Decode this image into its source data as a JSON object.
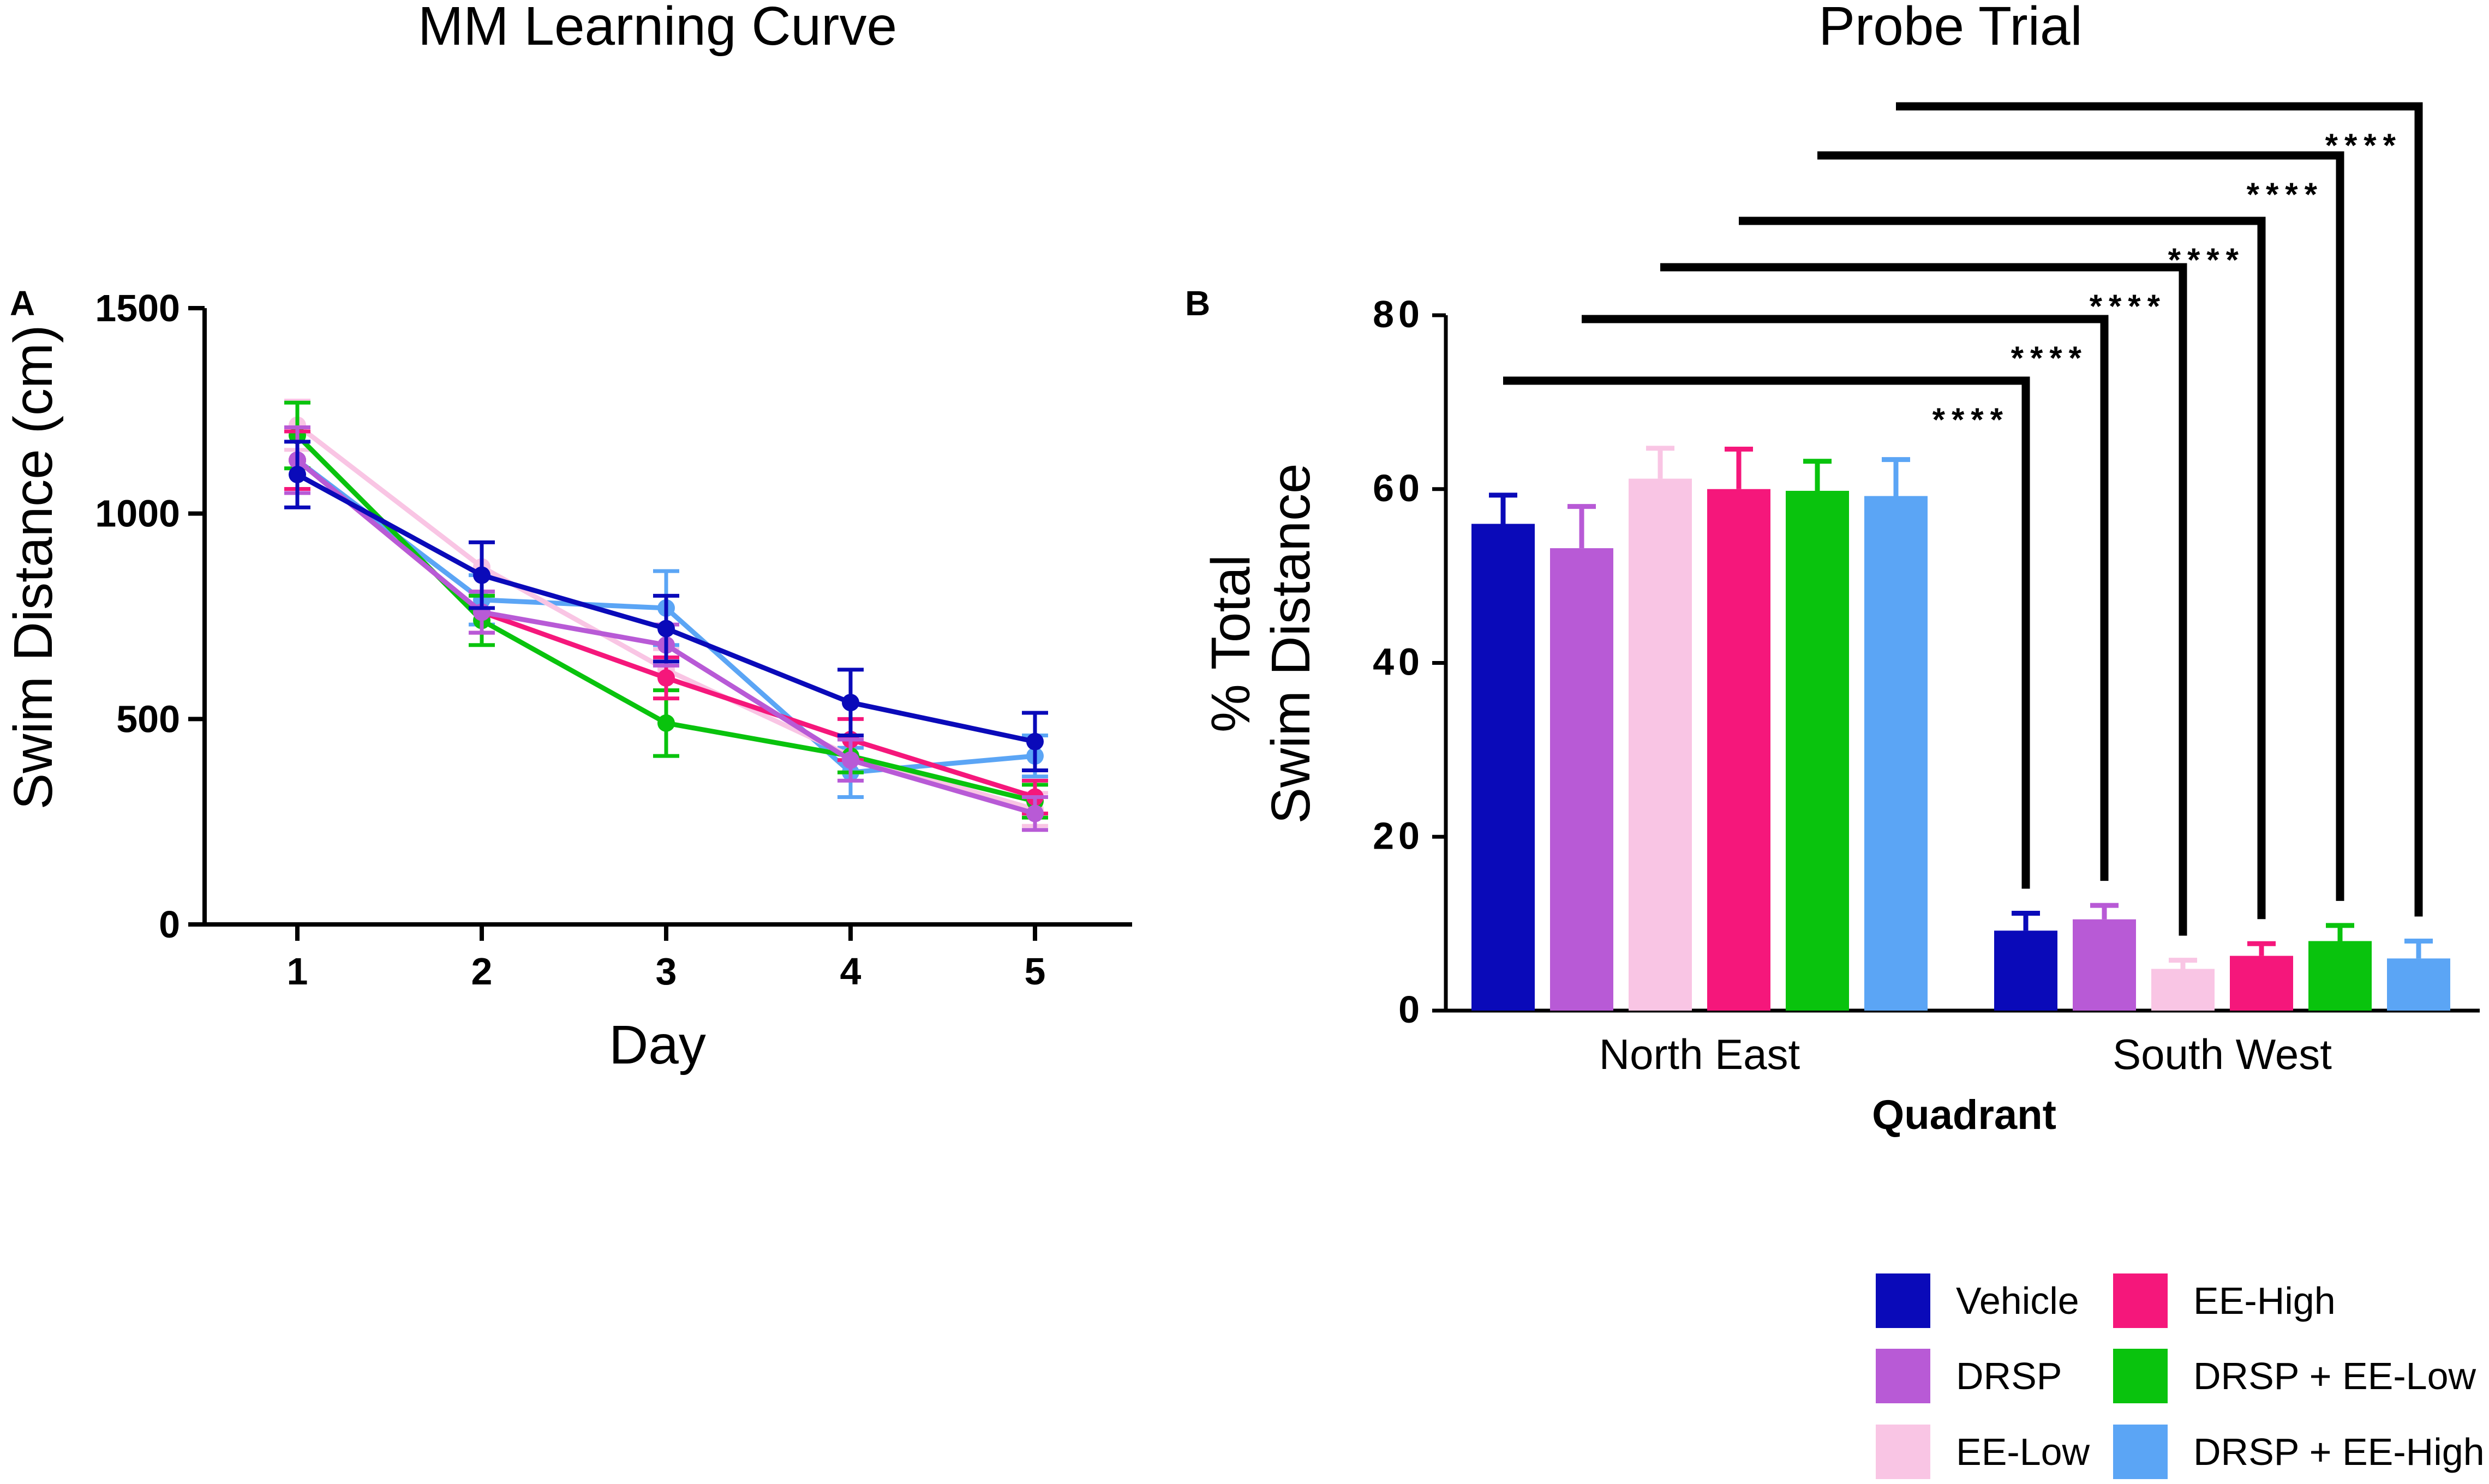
{
  "chart_data": [
    {
      "panel": "A",
      "type": "line",
      "title": "MM Learning Curve",
      "xlabel": "Day",
      "ylabel": "Swim Distance (cm)",
      "categories": [
        "1",
        "2",
        "3",
        "4",
        "5"
      ],
      "ylim": [
        0,
        1500
      ],
      "yticks": [
        "0",
        "500",
        "1000",
        "1500"
      ],
      "series": [
        {
          "name": "DRSP + EE-High",
          "color": "#5ba5f5",
          "values": [
            1130,
            790,
            770,
            370,
            410
          ],
          "errors": [
            70,
            60,
            90,
            60,
            50
          ]
        },
        {
          "name": "EE-Low",
          "color": "#f9c5e4",
          "values": [
            1215,
            870,
            620,
            410,
            280
          ],
          "errors": [
            60,
            60,
            50,
            40,
            40
          ]
        },
        {
          "name": "DRSP + EE-Low",
          "color": "#09c30d",
          "values": [
            1190,
            740,
            490,
            410,
            300
          ],
          "errors": [
            80,
            60,
            80,
            40,
            40
          ]
        },
        {
          "name": "EE-High",
          "color": "#f5177b",
          "values": [
            1130,
            760,
            600,
            450,
            310
          ],
          "errors": [
            70,
            50,
            50,
            50,
            40
          ]
        },
        {
          "name": "DRSP",
          "color": "#b85ad6",
          "values": [
            1130,
            760,
            680,
            400,
            270
          ],
          "errors": [
            80,
            50,
            50,
            50,
            40
          ]
        },
        {
          "name": "Vehicle",
          "color": "#0a0ab9",
          "values": [
            1095,
            850,
            720,
            540,
            445
          ],
          "errors": [
            80,
            80,
            80,
            80,
            70
          ]
        }
      ]
    },
    {
      "panel": "B",
      "type": "bar",
      "title": "Probe Trial",
      "xlabel": "Quadrant",
      "ylabel": "% Total Swim Distance",
      "ylabel_lines": [
        "% Total",
        "Swim Distance"
      ],
      "categories": [
        "North East",
        "South West"
      ],
      "ylim": [
        0,
        80
      ],
      "yticks": [
        "0",
        "20",
        "40",
        "60",
        "80"
      ],
      "significance_label": "****",
      "series": [
        {
          "name": "Vehicle",
          "color": "#0a0ab9",
          "values": [
            56,
            9.2
          ],
          "errors": [
            3.3,
            2.0
          ]
        },
        {
          "name": "DRSP",
          "color": "#b85ad6",
          "values": [
            53.2,
            10.5
          ],
          "errors": [
            4.8,
            1.6
          ]
        },
        {
          "name": "EE-Low",
          "color": "#f9c5e4",
          "values": [
            61.2,
            4.8
          ],
          "errors": [
            3.5,
            1.0
          ]
        },
        {
          "name": "EE-High",
          "color": "#f5177b",
          "values": [
            60,
            6.3
          ],
          "errors": [
            4.6,
            1.4
          ]
        },
        {
          "name": "DRSP + EE-Low",
          "color": "#09c30d",
          "values": [
            59.8,
            8.0
          ],
          "errors": [
            3.4,
            1.8
          ]
        },
        {
          "name": "DRSP + EE-High",
          "color": "#5ba5f5",
          "values": [
            59.2,
            6.0
          ],
          "errors": [
            4.2,
            2.0
          ]
        }
      ]
    }
  ],
  "legend": [
    {
      "label": "Vehicle",
      "color": "#0a0ab9"
    },
    {
      "label": "DRSP",
      "color": "#b85ad6"
    },
    {
      "label": "EE-Low",
      "color": "#f9c5e4"
    },
    {
      "label": "EE-High",
      "color": "#f5177b"
    },
    {
      "label": "DRSP + EE-Low",
      "color": "#09c30d"
    },
    {
      "label": "DRSP + EE-High",
      "color": "#5ba5f5"
    }
  ]
}
